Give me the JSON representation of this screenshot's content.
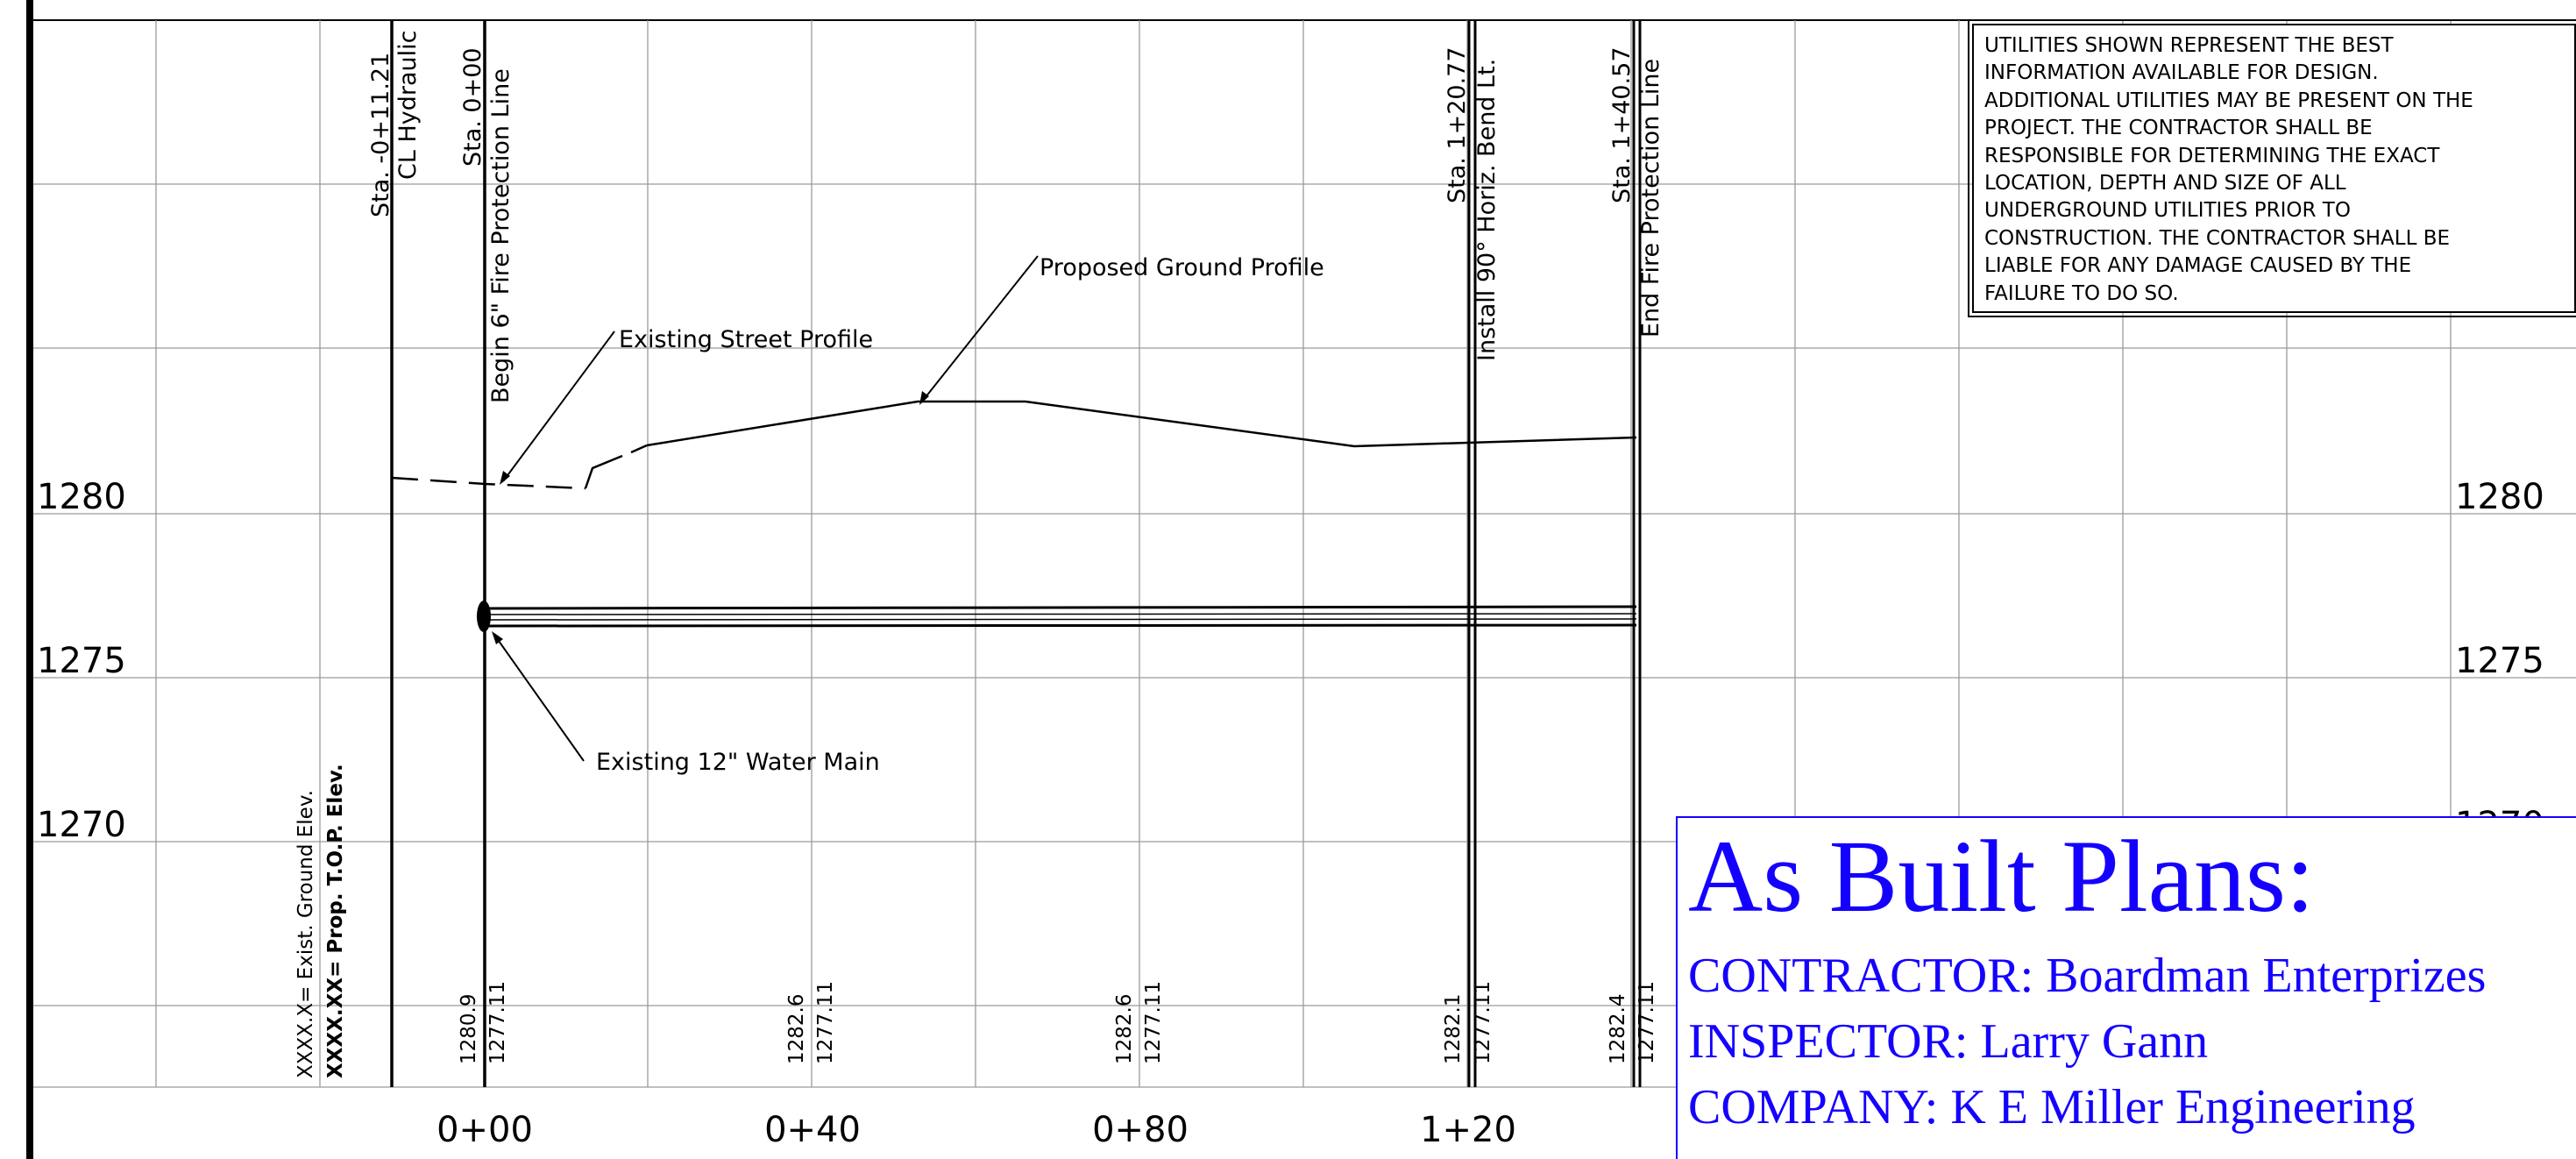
{
  "elevation_labels": {
    "left": [
      "1280",
      "1275",
      "1270"
    ],
    "right": [
      "1280",
      "1275",
      "1270"
    ]
  },
  "station_labels": [
    "0+00",
    "0+40",
    "0+80",
    "1+20"
  ],
  "station_callouts": [
    {
      "line1": "Sta. -0+11.21",
      "line2": "CL Hydraulic"
    },
    {
      "line1": "Sta. 0+00",
      "line2": "Begin 6\" Fire Protection Line"
    },
    {
      "line1": "Sta. 1+20.77",
      "line2": "Install 90° Horiz. Bend Lt."
    },
    {
      "line1": "Sta. 1+40.57",
      "line2": "End Fire Protection Line"
    }
  ],
  "annotations": {
    "proposed_ground": "Proposed Ground Profile",
    "existing_street": "Existing Street Profile",
    "existing_water_main": "Existing 12\" Water Main"
  },
  "legend": {
    "exist_ground": "XXXX.X= Exist. Ground Elev.",
    "prop_top": "XXXX.XX= Prop. T.O.P. Elev."
  },
  "elevation_pairs": [
    {
      "ground": "1280.9",
      "top": "1277.11"
    },
    {
      "ground": "1282.6",
      "top": "1277.11"
    },
    {
      "ground": "1282.6",
      "top": "1277.11"
    },
    {
      "ground": "1282.1",
      "top": "1277.11"
    },
    {
      "ground": "1282.4",
      "top": "1277.11"
    }
  ],
  "utility_note": "UTILITIES SHOWN REPRESENT THE BEST\nINFORMATION AVAILABLE FOR DESIGN.\nADDITIONAL UTILITIES MAY BE PRESENT ON THE\nPROJECT.  THE CONTRACTOR SHALL BE\nRESPONSIBLE FOR DETERMINING THE EXACT\nLOCATION, DEPTH AND SIZE OF ALL\nUNDERGROUND UTILITIES PRIOR TO\nCONSTRUCTION.  THE CONTRACTOR SHALL BE\nLIABLE FOR ANY DAMAGE CAUSED BY THE\nFAILURE TO DO SO.",
  "as_built": {
    "title": "As Built Plans:",
    "contractor": "CONTRACTOR:  Boardman Enterprizes",
    "inspector": "INSPECTOR:  Larry Gann",
    "company": "COMPANY:  K E Miller Engineering"
  },
  "colors": {
    "ink": "#000000",
    "grid": "#9a9a9a",
    "as_built_blue": "#1400ff"
  }
}
